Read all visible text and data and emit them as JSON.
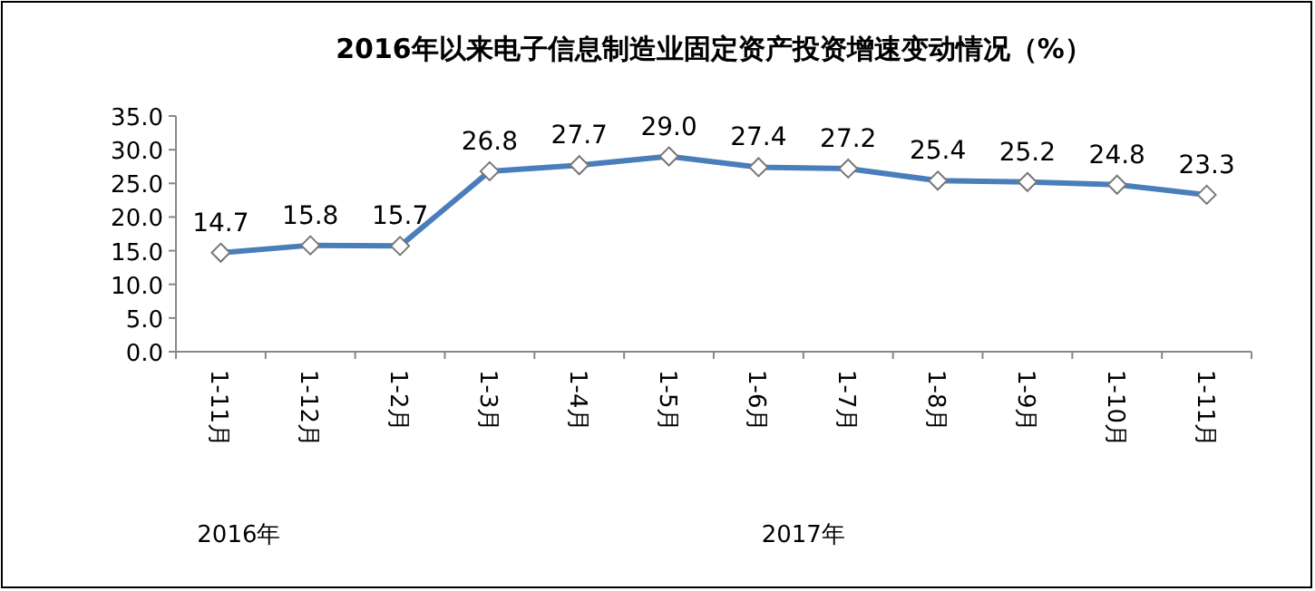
{
  "chart_data": {
    "type": "line",
    "title": "2016年以来电子信息制造业固定资产投资增速变动情况（%）",
    "categories": [
      "1-11月",
      "1-12月",
      "1-2月",
      "1-3月",
      "1-4月",
      "1-5月",
      "1-6月",
      "1-7月",
      "1-8月",
      "1-9月",
      "1-10月",
      "1-11月"
    ],
    "values": [
      14.7,
      15.8,
      15.7,
      26.8,
      27.7,
      29.0,
      27.4,
      27.2,
      25.4,
      25.2,
      24.8,
      23.3
    ],
    "value_labels": [
      "14.7",
      "15.8",
      "15.7",
      "26.8",
      "27.7",
      "29.0",
      "27.4",
      "27.2",
      "25.4",
      "25.2",
      "24.8",
      "23.3"
    ],
    "color": "#4a7ebb",
    "marker": "diamond",
    "ylim": [
      0,
      35
    ],
    "yticks": [
      {
        "value": 0,
        "label": "0.0"
      },
      {
        "value": 5,
        "label": "5.0"
      },
      {
        "value": 10,
        "label": "10.0"
      },
      {
        "value": 15,
        "label": "15.0"
      },
      {
        "value": 20,
        "label": "20.0"
      },
      {
        "value": 25,
        "label": "25.0"
      },
      {
        "value": 30,
        "label": "30.0"
      },
      {
        "value": 35,
        "label": "35.0"
      }
    ],
    "annotations": [
      "2016年",
      "2017年"
    ]
  }
}
